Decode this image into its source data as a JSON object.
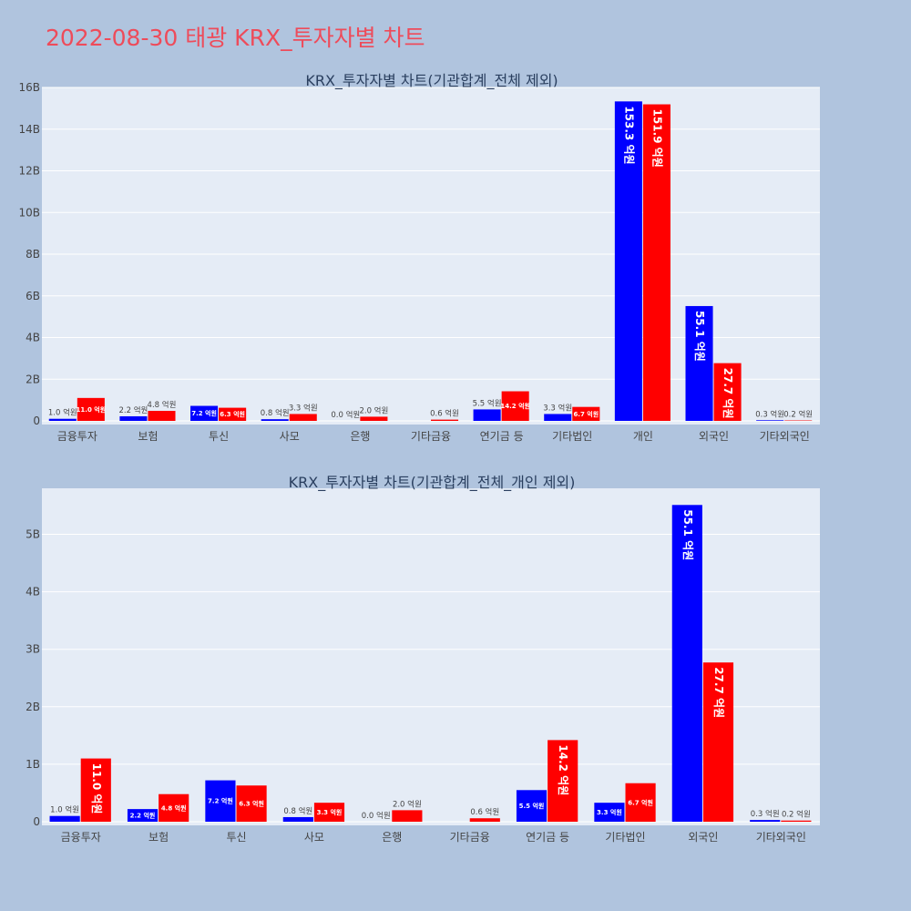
{
  "title": "2022-08-30 태광 KRX_투자자별 차트",
  "chart_data": [
    {
      "type": "bar",
      "title": "KRX_투자자별 차트(기관합계_전체 제외)",
      "categories": [
        "금융투자",
        "보험",
        "투신",
        "사모",
        "은행",
        "기타금융",
        "연기금 등",
        "기타법인",
        "개인",
        "외국인",
        "기타외국인"
      ],
      "series": [
        {
          "color": "#0000ff",
          "values": [
            100000000,
            220000000,
            720000000,
            80000000,
            0,
            0,
            550000000,
            330000000,
            15330000000,
            5510000000,
            30000000
          ],
          "labels": [
            "1.0 억원",
            "2.2 억원",
            "7.2 억원",
            "0.8 억원",
            "0.0 억원",
            "",
            "5.5 억원",
            "3.3 억원",
            "153.3 억원",
            "55.1 억원",
            "0.3 억원"
          ]
        },
        {
          "color": "#ff0000",
          "values": [
            1100000000,
            480000000,
            630000000,
            330000000,
            200000000,
            60000000,
            1420000000,
            670000000,
            15190000000,
            2770000000,
            20000000
          ],
          "labels": [
            "11.0 억원",
            "4.8 억원",
            "6.3 억원",
            "3.3 억원",
            "2.0 억원",
            "0.6 억원",
            "14.2 억원",
            "6.7 억원",
            "151.9 억원",
            "27.7 억원",
            "0.2 억원"
          ]
        }
      ],
      "ylim": [
        0,
        16000000000
      ],
      "yticks": [
        0,
        2000000000,
        4000000000,
        6000000000,
        8000000000,
        10000000000,
        12000000000,
        14000000000,
        16000000000
      ],
      "ytick_labels": [
        "0",
        "2B",
        "4B",
        "6B",
        "8B",
        "10B",
        "12B",
        "14B",
        "16B"
      ],
      "grid": true
    },
    {
      "type": "bar",
      "title": "KRX_투자자별 차트(기관합계_전체_개인 제외)",
      "categories": [
        "금융투자",
        "보험",
        "투신",
        "사모",
        "은행",
        "기타금융",
        "연기금 등",
        "기타법인",
        "외국인",
        "기타외국인"
      ],
      "series": [
        {
          "color": "#0000ff",
          "values": [
            100000000,
            220000000,
            720000000,
            80000000,
            0,
            0,
            550000000,
            330000000,
            5510000000,
            30000000
          ],
          "labels": [
            "1.0 억원",
            "2.2 억원",
            "7.2 억원",
            "0.8 억원",
            "0.0 억원",
            "",
            "5.5 억원",
            "3.3 억원",
            "55.1 억원",
            "0.3 억원"
          ]
        },
        {
          "color": "#ff0000",
          "values": [
            1100000000,
            480000000,
            630000000,
            330000000,
            200000000,
            60000000,
            1420000000,
            670000000,
            2770000000,
            20000000
          ],
          "labels": [
            "11.0 억원",
            "4.8 억원",
            "6.3 억원",
            "3.3 억원",
            "2.0 억원",
            "0.6 억원",
            "14.2 억원",
            "6.7 억원",
            "27.7 억원",
            "0.2 억원"
          ]
        }
      ],
      "ylim": [
        0,
        5800000000
      ],
      "yticks": [
        0,
        1000000000,
        2000000000,
        3000000000,
        4000000000,
        5000000000
      ],
      "ytick_labels": [
        "0",
        "1B",
        "2B",
        "3B",
        "4B",
        "5B"
      ],
      "grid": true
    }
  ]
}
